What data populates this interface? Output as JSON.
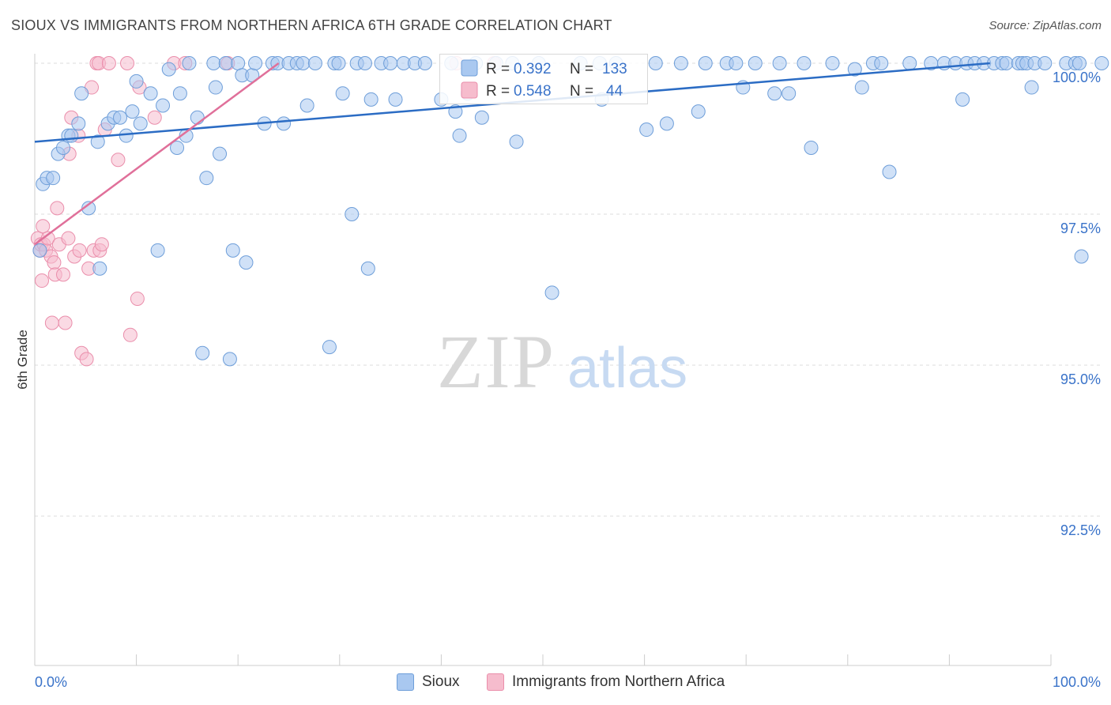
{
  "title": "SIOUX VS IMMIGRANTS FROM NORTHERN AFRICA 6TH GRADE CORRELATION CHART",
  "source": "Source: ZipAtlas.com",
  "watermark": {
    "zip": "ZIP",
    "atlas": "atlas"
  },
  "colors": {
    "blue_fill": "#a9c8f0",
    "blue_stroke": "#6e9ed9",
    "blue_line": "#2b6cc4",
    "pink_fill": "#f6bccd",
    "pink_stroke": "#ea8eab",
    "pink_line": "#e0709a",
    "value_blue": "#3a73c9",
    "grid": "#dddddd",
    "axis": "#cccccc"
  },
  "legend_stats": [
    {
      "r_label": "R =",
      "r_value": "0.392",
      "n_label": "N =",
      "n_value": "133"
    },
    {
      "r_label": "R =",
      "r_value": "0.548",
      "n_label": "N =",
      "n_value": "44"
    }
  ],
  "chart_data": {
    "type": "scatter",
    "title": "SIOUX VS IMMIGRANTS FROM NORTHERN AFRICA 6TH GRADE CORRELATION CHART",
    "xlabel": "",
    "ylabel": "6th Grade",
    "xlim": [
      0,
      100
    ],
    "ylim": [
      90.0,
      100.5
    ],
    "x_tick_labels": [
      "0.0%",
      "100.0%"
    ],
    "y_ticks": [
      92.5,
      95.0,
      97.5,
      100.0
    ],
    "y_tick_labels": [
      "92.5%",
      "95.0%",
      "97.5%",
      "100.0%"
    ],
    "grid": "horizontal dashed",
    "legend_position": "bottom",
    "series": [
      {
        "name": "Sioux",
        "r": 0.392,
        "n": 133,
        "trend": {
          "x": [
            0,
            94
          ],
          "y": [
            98.7,
            100.0
          ]
        },
        "points": [
          [
            0.5,
            96.9
          ],
          [
            0.8,
            98.0
          ],
          [
            1.2,
            98.1
          ],
          [
            1.8,
            98.1
          ],
          [
            2.3,
            98.5
          ],
          [
            2.8,
            98.6
          ],
          [
            3.3,
            98.8
          ],
          [
            3.6,
            98.8
          ],
          [
            4.3,
            99.0
          ],
          [
            4.6,
            99.5
          ],
          [
            5.3,
            97.6
          ],
          [
            6.2,
            98.7
          ],
          [
            6.4,
            96.6
          ],
          [
            7.2,
            99.0
          ],
          [
            7.8,
            99.1
          ],
          [
            8.4,
            99.1
          ],
          [
            9.0,
            98.8
          ],
          [
            9.6,
            99.2
          ],
          [
            10.0,
            99.7
          ],
          [
            10.4,
            99.0
          ],
          [
            11.4,
            99.5
          ],
          [
            12.1,
            96.9
          ],
          [
            12.6,
            99.3
          ],
          [
            13.2,
            99.9
          ],
          [
            14.0,
            98.6
          ],
          [
            14.3,
            99.5
          ],
          [
            14.9,
            98.8
          ],
          [
            15.2,
            100.0
          ],
          [
            16.0,
            99.1
          ],
          [
            16.5,
            95.2
          ],
          [
            16.9,
            98.1
          ],
          [
            17.6,
            100.0
          ],
          [
            17.8,
            99.6
          ],
          [
            18.2,
            98.5
          ],
          [
            18.8,
            100.0
          ],
          [
            19.2,
            95.1
          ],
          [
            19.5,
            96.9
          ],
          [
            20.0,
            100.0
          ],
          [
            20.4,
            99.8
          ],
          [
            20.8,
            96.7
          ],
          [
            21.4,
            99.8
          ],
          [
            21.7,
            100.0
          ],
          [
            22.6,
            99.0
          ],
          [
            23.4,
            100.0
          ],
          [
            23.9,
            100.0
          ],
          [
            24.5,
            99.0
          ],
          [
            25.0,
            100.0
          ],
          [
            25.8,
            100.0
          ],
          [
            26.4,
            100.0
          ],
          [
            26.8,
            99.3
          ],
          [
            27.6,
            100.0
          ],
          [
            29.0,
            95.3
          ],
          [
            29.5,
            100.0
          ],
          [
            29.9,
            100.0
          ],
          [
            30.3,
            99.5
          ],
          [
            31.2,
            97.5
          ],
          [
            31.7,
            100.0
          ],
          [
            32.5,
            100.0
          ],
          [
            32.8,
            96.6
          ],
          [
            33.1,
            99.4
          ],
          [
            34.1,
            100.0
          ],
          [
            35.0,
            100.0
          ],
          [
            35.5,
            99.4
          ],
          [
            36.3,
            100.0
          ],
          [
            37.4,
            100.0
          ],
          [
            38.4,
            100.0
          ],
          [
            40.0,
            99.4
          ],
          [
            41.0,
            100.0
          ],
          [
            41.4,
            99.2
          ],
          [
            41.8,
            98.8
          ],
          [
            42.6,
            99.5
          ],
          [
            43.4,
            100.0
          ],
          [
            44.0,
            99.1
          ],
          [
            45.4,
            100.0
          ],
          [
            47.0,
            100.0
          ],
          [
            47.4,
            98.7
          ],
          [
            49.6,
            100.0
          ],
          [
            50.9,
            96.2
          ],
          [
            53.7,
            100.0
          ],
          [
            55.6,
            100.0
          ],
          [
            55.8,
            99.4
          ],
          [
            57.2,
            100.0
          ],
          [
            60.2,
            98.9
          ],
          [
            61.1,
            100.0
          ],
          [
            62.2,
            99.0
          ],
          [
            63.6,
            100.0
          ],
          [
            65.3,
            99.2
          ],
          [
            66.0,
            100.0
          ],
          [
            68.1,
            100.0
          ],
          [
            69.0,
            100.0
          ],
          [
            69.7,
            99.6
          ],
          [
            70.9,
            100.0
          ],
          [
            72.8,
            99.5
          ],
          [
            73.3,
            100.0
          ],
          [
            74.2,
            99.5
          ],
          [
            75.7,
            100.0
          ],
          [
            76.4,
            98.6
          ],
          [
            78.5,
            100.0
          ],
          [
            80.7,
            99.9
          ],
          [
            81.4,
            99.6
          ],
          [
            82.5,
            100.0
          ],
          [
            83.3,
            100.0
          ],
          [
            84.1,
            98.2
          ],
          [
            86.1,
            100.0
          ],
          [
            88.2,
            100.0
          ],
          [
            89.5,
            100.0
          ],
          [
            90.6,
            100.0
          ],
          [
            91.3,
            99.4
          ],
          [
            91.7,
            100.0
          ],
          [
            92.5,
            100.0
          ],
          [
            93.4,
            100.0
          ],
          [
            94.4,
            100.0
          ],
          [
            95.2,
            100.0
          ],
          [
            95.6,
            100.0
          ],
          [
            96.8,
            100.0
          ],
          [
            97.2,
            100.0
          ],
          [
            97.6,
            100.0
          ],
          [
            98.1,
            99.6
          ],
          [
            98.4,
            100.0
          ],
          [
            99.4,
            100.0
          ],
          [
            101.5,
            100.0
          ],
          [
            102.4,
            100.0
          ],
          [
            102.8,
            100.0
          ],
          [
            103.0,
            96.8
          ],
          [
            105.0,
            100.0
          ]
        ]
      },
      {
        "name": "Immigrants from Northern Africa",
        "r": 0.548,
        "n": 44,
        "trend": {
          "x": [
            0,
            24
          ],
          "y": [
            97.0,
            100.0
          ]
        },
        "points": [
          [
            0.3,
            97.1
          ],
          [
            0.5,
            96.9
          ],
          [
            0.6,
            97.0
          ],
          [
            0.7,
            96.4
          ],
          [
            0.8,
            97.3
          ],
          [
            0.9,
            97.0
          ],
          [
            1.1,
            96.9
          ],
          [
            1.3,
            97.1
          ],
          [
            1.6,
            96.8
          ],
          [
            1.7,
            95.7
          ],
          [
            1.9,
            96.7
          ],
          [
            2.0,
            96.5
          ],
          [
            2.2,
            97.6
          ],
          [
            2.4,
            97.0
          ],
          [
            2.8,
            96.5
          ],
          [
            3.0,
            95.7
          ],
          [
            3.3,
            97.1
          ],
          [
            3.4,
            98.5
          ],
          [
            3.6,
            99.1
          ],
          [
            3.9,
            96.8
          ],
          [
            4.3,
            98.8
          ],
          [
            4.4,
            96.9
          ],
          [
            4.6,
            95.2
          ],
          [
            5.1,
            95.1
          ],
          [
            5.3,
            96.6
          ],
          [
            5.6,
            99.6
          ],
          [
            5.8,
            96.9
          ],
          [
            6.1,
            100.0
          ],
          [
            6.3,
            100.0
          ],
          [
            6.4,
            96.9
          ],
          [
            6.6,
            97.0
          ],
          [
            6.9,
            98.9
          ],
          [
            7.3,
            100.0
          ],
          [
            8.2,
            98.4
          ],
          [
            9.1,
            100.0
          ],
          [
            9.4,
            95.5
          ],
          [
            10.1,
            96.1
          ],
          [
            10.3,
            99.6
          ],
          [
            11.8,
            99.1
          ],
          [
            13.7,
            100.0
          ],
          [
            14.8,
            100.0
          ],
          [
            19.0,
            100.0
          ],
          [
            41.5,
            100.0
          ],
          [
            45.2,
            100.0
          ]
        ]
      }
    ]
  }
}
